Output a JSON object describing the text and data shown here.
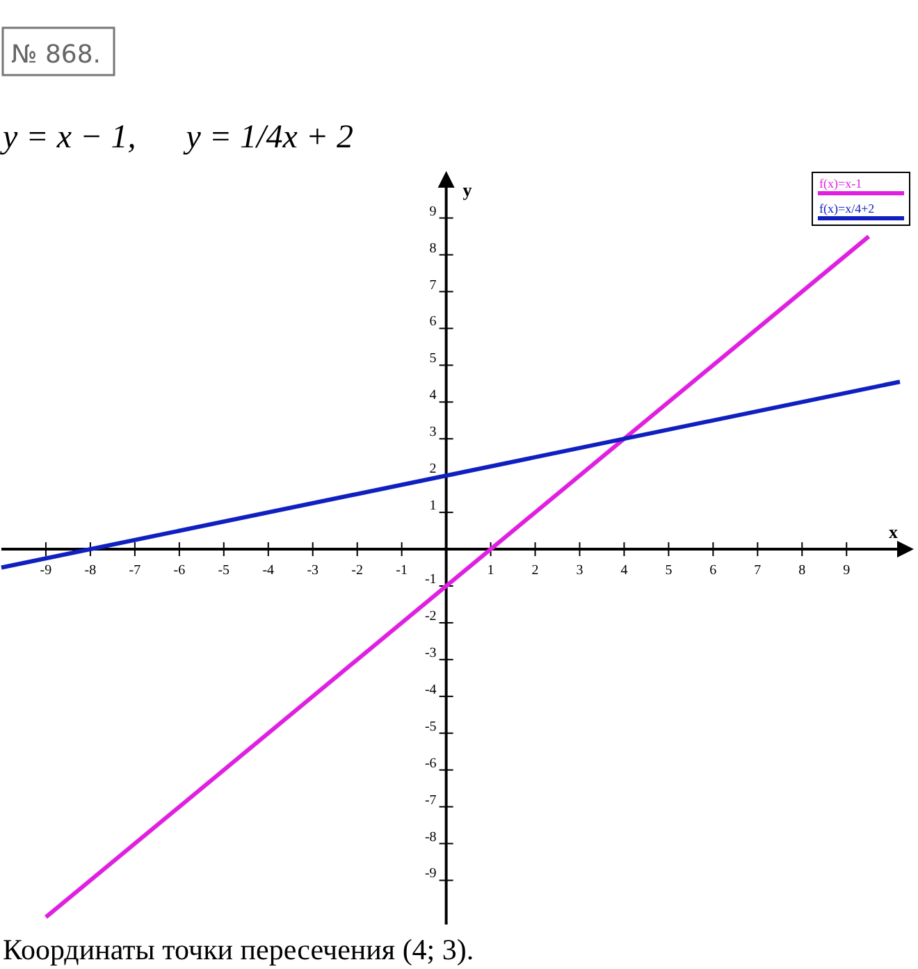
{
  "chart_data": {
    "type": "line",
    "title": "№ 868.",
    "subtitle": "y = x − 1,      y = 1/4x + 2",
    "xlabel": "x",
    "ylabel": "y",
    "annotations": [
      "Координаты точки пересечения (4; 3)."
    ],
    "xlim": [
      -10,
      10.2
    ],
    "ylim": [
      -10.2,
      9.9
    ],
    "xticks": [
      -9,
      -8,
      -7,
      -6,
      -5,
      -4,
      -3,
      -2,
      -1,
      1,
      2,
      3,
      4,
      5,
      6,
      7,
      8,
      9
    ],
    "yticks": [
      -9,
      -8,
      -7,
      -6,
      -5,
      -4,
      -3,
      -2,
      -1,
      1,
      2,
      3,
      4,
      5,
      6,
      7,
      8,
      9
    ],
    "grid": false,
    "legend": "top right",
    "marker": "none",
    "line_style": "solid",
    "series": [
      {
        "name": "f(x)=x-1",
        "color": "#e020e0",
        "x": [
          -9,
          9.5
        ],
        "values": [
          -10,
          8.5
        ]
      },
      {
        "name": "f(x)=x/4+2",
        "color": "#1020c0",
        "x": [
          -10,
          10.2
        ],
        "values": [
          -0.5,
          4.55
        ]
      }
    ]
  }
}
